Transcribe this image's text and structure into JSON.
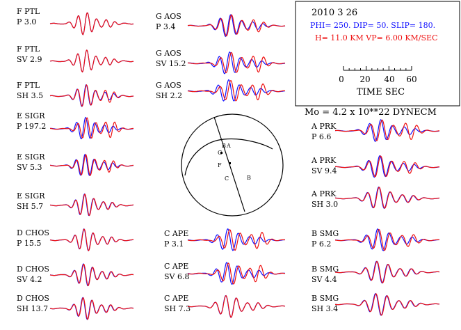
{
  "header": {
    "date": "2010  3 26",
    "mechanism": "PHI= 250. DIP= 50. SLIP= 180.",
    "depth_velocity": "H= 11.0 KM  VP= 6.00 KM/SEC",
    "moment": "Mo =  4.2 x 10**22 DYNECM",
    "time_scale": {
      "ticks": [
        "0",
        "20",
        "40",
        "60"
      ],
      "label": "TIME   SEC"
    }
  },
  "colors": {
    "observed": "#1010ff",
    "synthetic": "#ee1010",
    "ink": "#000000"
  },
  "traces": [
    {
      "id": "f-ptl-p",
      "station": "F PTL",
      "line2": "P    3.0",
      "phase": "P",
      "amp": 3.0
    },
    {
      "id": "f-ptl-sv",
      "station": "F PTL",
      "line2": "SV  2.9",
      "phase": "SV",
      "amp": 2.9
    },
    {
      "id": "f-ptl-sh",
      "station": "F PTL",
      "line2": "SH  3.5",
      "phase": "SH",
      "amp": 3.5
    },
    {
      "id": "e-sigr-p",
      "station": "E SIGR",
      "line2": "P    197.2",
      "phase": "P",
      "amp": 197.2
    },
    {
      "id": "e-sigr-sv",
      "station": "E SIGR",
      "line2": "SV  5.3",
      "phase": "SV",
      "amp": 5.3
    },
    {
      "id": "e-sigr-sh",
      "station": "E SIGR",
      "line2": "SH  5.7",
      "phase": "SH",
      "amp": 5.7
    },
    {
      "id": "d-chos-p",
      "station": "D CHOS",
      "line2": "P    15.5",
      "phase": "P",
      "amp": 15.5
    },
    {
      "id": "d-chos-sv",
      "station": "D CHOS",
      "line2": "SV  4.2",
      "phase": "SV",
      "amp": 4.2
    },
    {
      "id": "d-chos-sh",
      "station": "D CHOS",
      "line2": "SH  13.7",
      "phase": "SH",
      "amp": 13.7
    },
    {
      "id": "g-aos-p",
      "station": "G AOS",
      "line2": "P    3.4",
      "phase": "P",
      "amp": 3.4
    },
    {
      "id": "g-aos-sv",
      "station": "G AOS",
      "line2": "SV  15.2",
      "phase": "SV",
      "amp": 15.2
    },
    {
      "id": "g-aos-sh",
      "station": "G AOS",
      "line2": "SH  2.2",
      "phase": "SH",
      "amp": 2.2
    },
    {
      "id": "c-ape-p",
      "station": "C APE",
      "line2": "P    3.1",
      "phase": "P",
      "amp": 3.1
    },
    {
      "id": "c-ape-sv",
      "station": "C APE",
      "line2": "SV  6.8",
      "phase": "SV",
      "amp": 6.8
    },
    {
      "id": "c-ape-sh",
      "station": "C APE",
      "line2": "SH  7.3",
      "phase": "SH",
      "amp": 7.3
    },
    {
      "id": "a-prk-p",
      "station": "A PRK",
      "line2": "P    6.6",
      "phase": "P",
      "amp": 6.6
    },
    {
      "id": "a-prk-sv",
      "station": "A PRK",
      "line2": "SV  9.4",
      "phase": "SV",
      "amp": 9.4
    },
    {
      "id": "a-prk-sh",
      "station": "A PRK",
      "line2": "SH  3.0",
      "phase": "SH",
      "amp": 3.0
    },
    {
      "id": "b-smg-p",
      "station": "B SMG",
      "line2": "P    6.2",
      "phase": "P",
      "amp": 6.2
    },
    {
      "id": "b-smg-sv",
      "station": "B SMG",
      "line2": "SV  4.4",
      "phase": "SV",
      "amp": 4.4
    },
    {
      "id": "b-smg-sh",
      "station": "B SMG",
      "line2": "SH  3.4",
      "phase": "SH",
      "amp": 3.4
    }
  ],
  "stereonet_labels": [
    "B",
    "A",
    "G",
    "F",
    "C",
    "B"
  ]
}
